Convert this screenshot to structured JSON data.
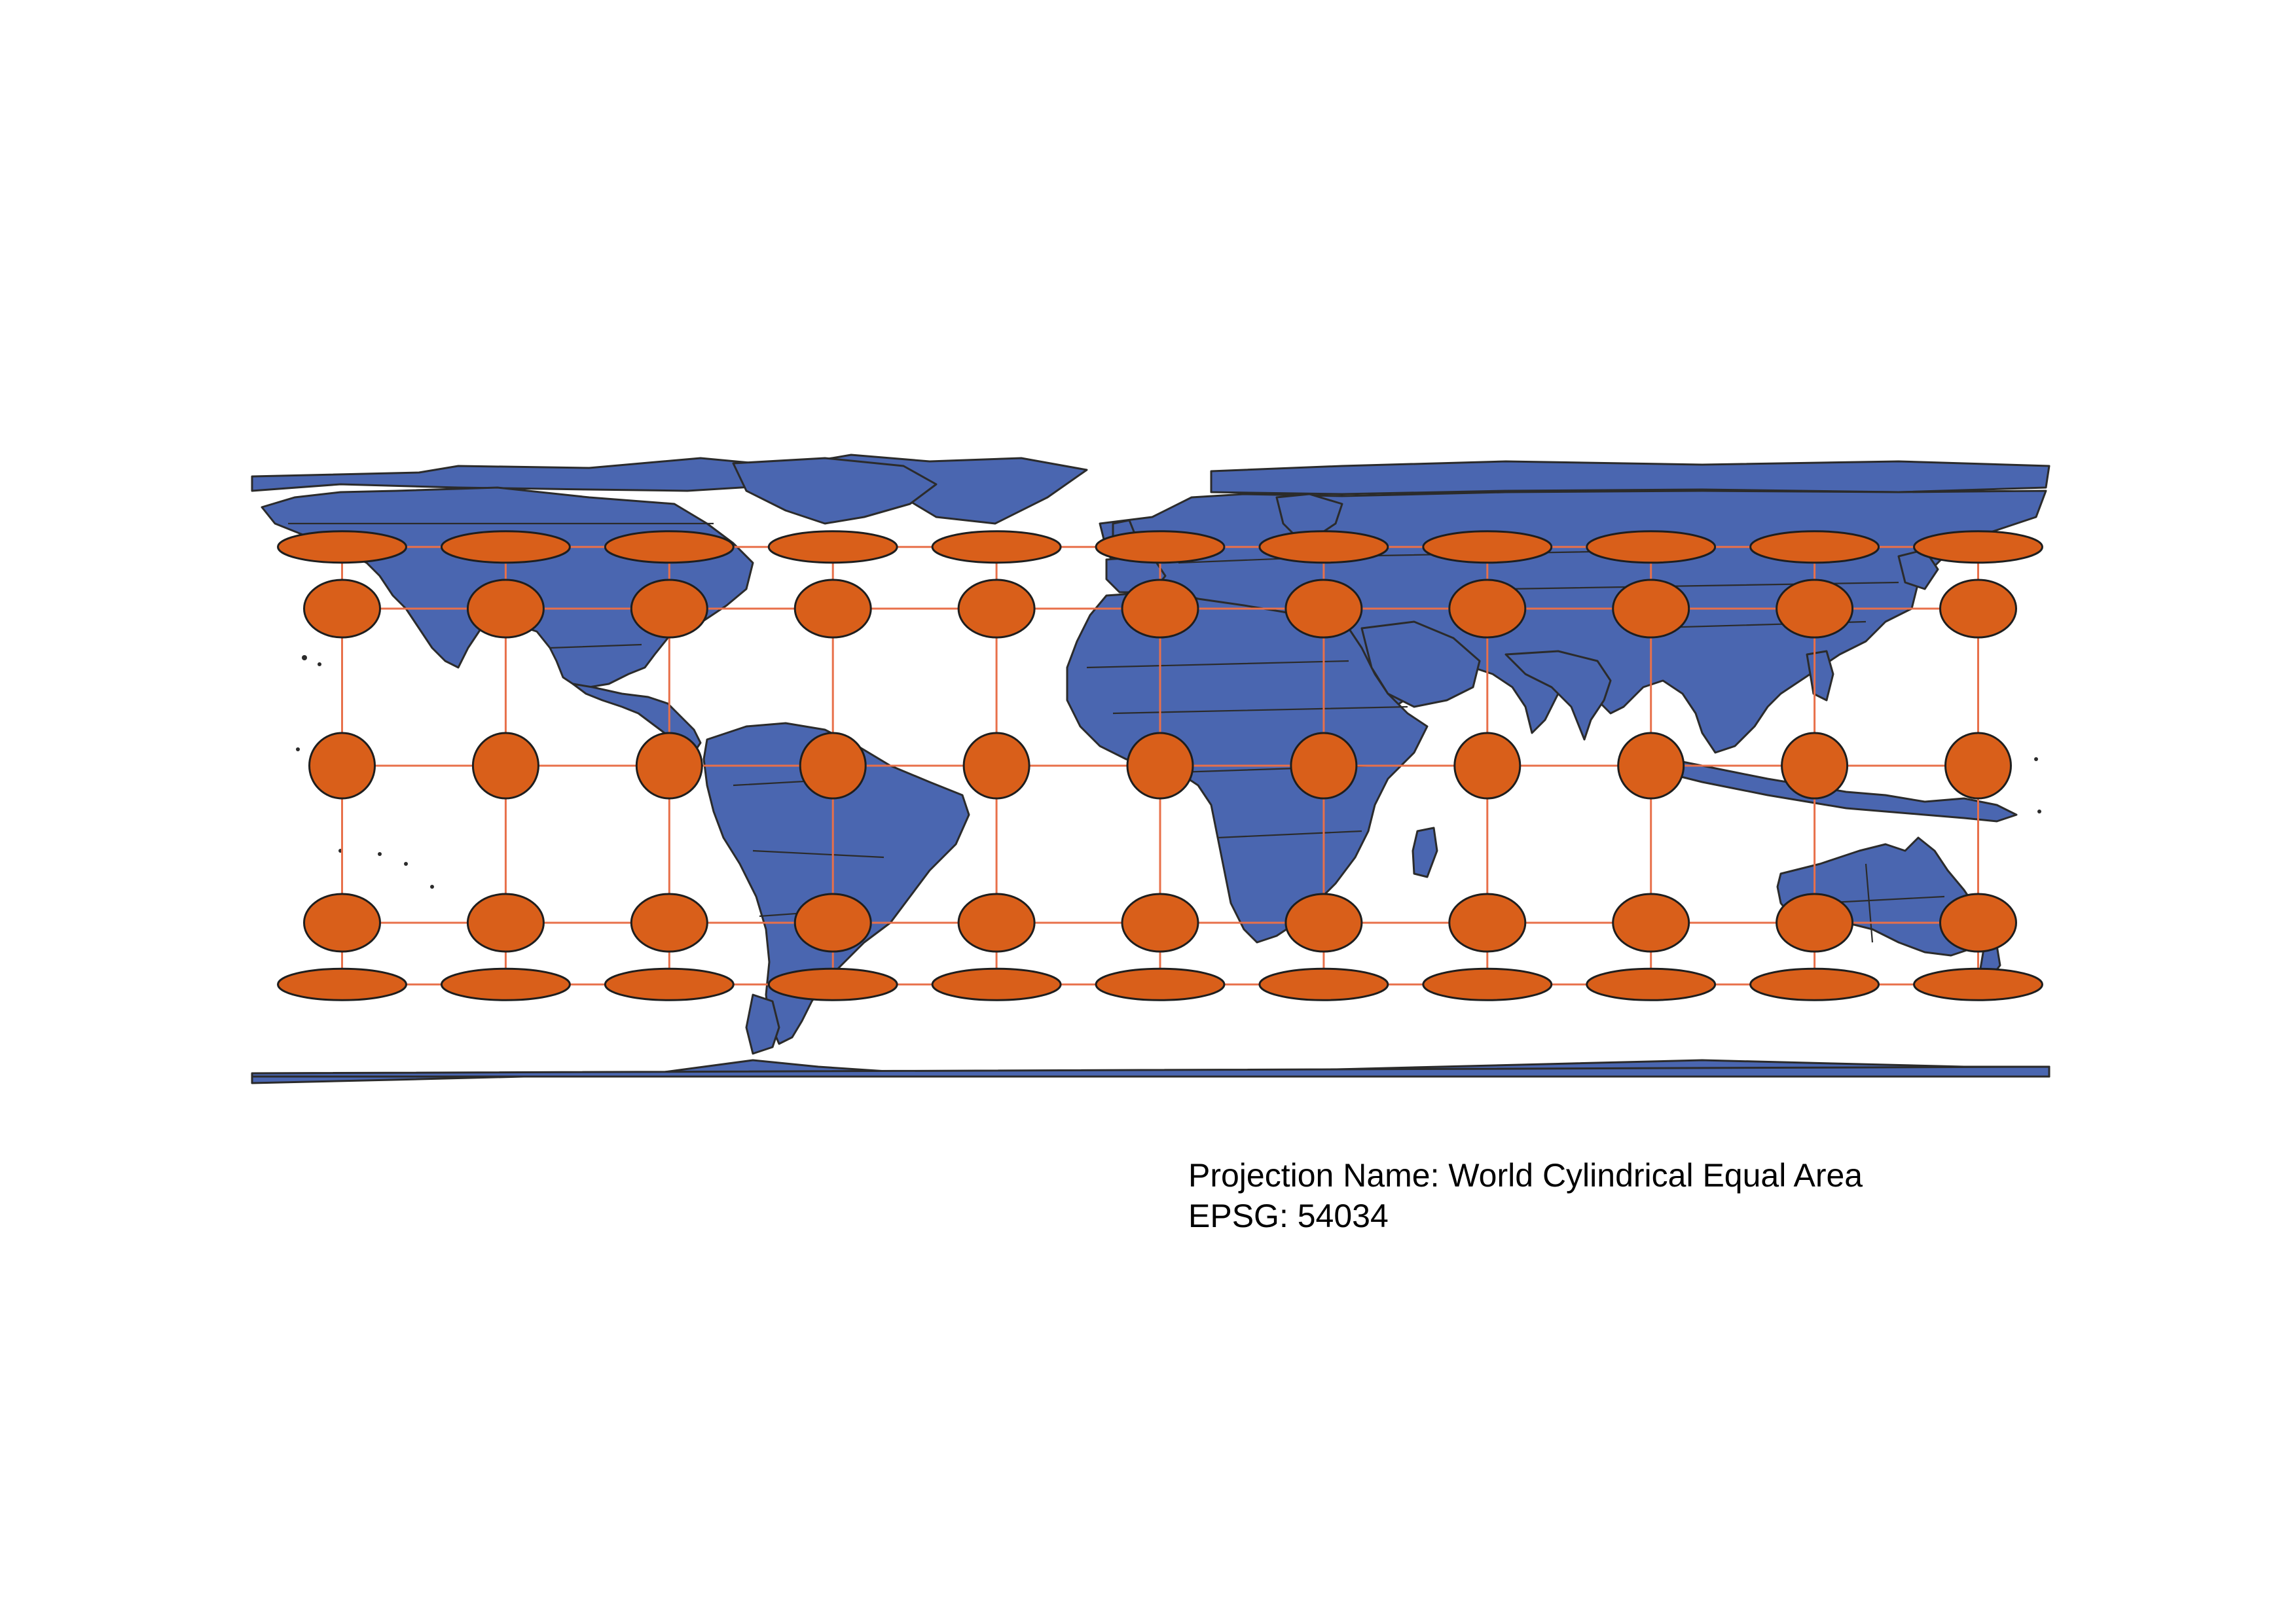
{
  "map": {
    "projection_name_text": "Projection Name: World Cylindrical Equal Area",
    "epsg_text": "EPSG: 54034",
    "tissot_latitudes_deg": [
      80,
      45,
      0,
      -45,
      -80
    ],
    "tissot_longitudes_deg": [
      -150,
      -120,
      -90,
      -60,
      -30,
      0,
      30,
      60,
      90,
      120,
      150
    ],
    "graticule_latitudes_deg": [
      80,
      45,
      0,
      -45,
      -80
    ],
    "graticule_longitudes_deg": [
      -150,
      -120,
      -90,
      -60,
      -30,
      0,
      30,
      60,
      90,
      120,
      150
    ],
    "colors": {
      "land": "#4a66b0",
      "tissot_fill": "#d95f1a",
      "graticule": "#e8704a",
      "outline": "#2b2b2b",
      "background": "#ffffff"
    }
  }
}
